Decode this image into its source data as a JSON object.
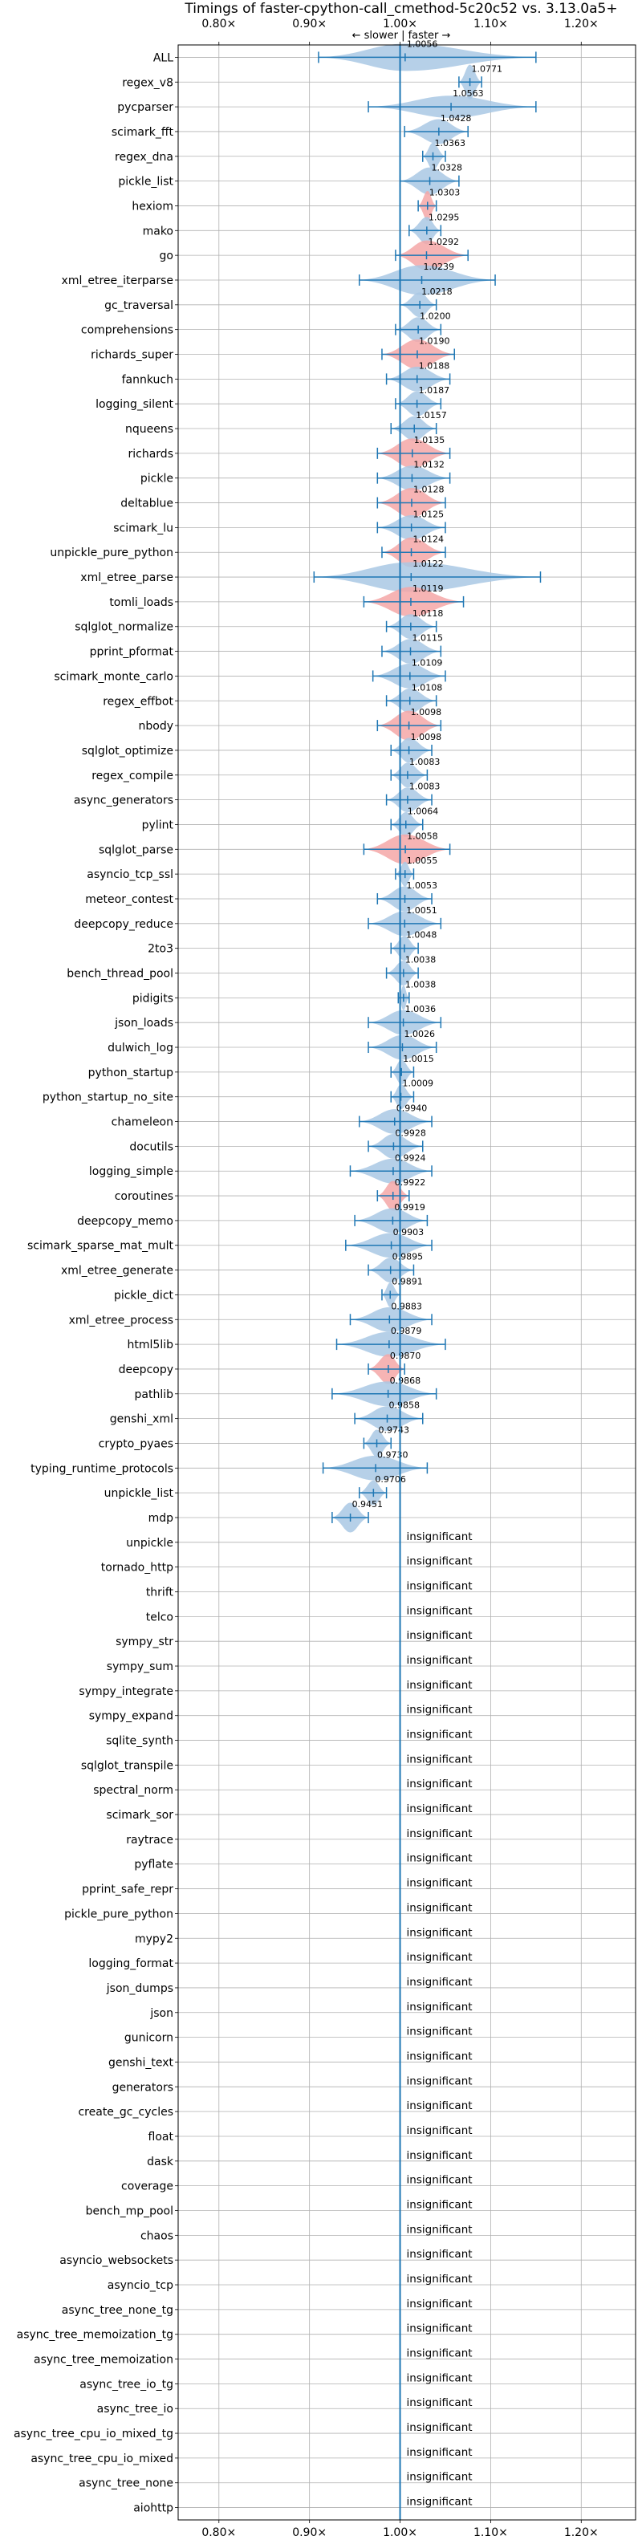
{
  "chart_data": {
    "type": "violin",
    "title": "Timings of faster-cpython-call_cmethod-5c20c52 vs. 3.13.0a5+",
    "direction_label": "← slower | faster →",
    "x_tick_labels": [
      "0.80×",
      "0.90×",
      "1.00×",
      "1.10×",
      "1.20×"
    ],
    "x_ticks": [
      0.8,
      0.9,
      1.0,
      1.1,
      1.2
    ],
    "xlim": [
      0.755,
      1.26
    ],
    "reference_line": 1.0,
    "grid": true,
    "insignificant_label": "insignificant",
    "colors": {
      "normal": "#1f77b4",
      "fill": "#a9c8e4",
      "highlight": "#f4a7a7",
      "grid": "#b0b0b0"
    },
    "benchmarks": [
      {
        "name": "ALL",
        "value": 1.0056,
        "label": "1.0056",
        "lo": 0.91,
        "hi": 1.15,
        "width": 0.55,
        "highlight": false
      },
      {
        "name": "regex_v8",
        "value": 1.0771,
        "label": "1.0771",
        "lo": 1.065,
        "hi": 1.09,
        "width": 0.7,
        "highlight": false
      },
      {
        "name": "pycparser",
        "value": 1.0563,
        "label": "1.0563",
        "lo": 0.965,
        "hi": 1.15,
        "width": 0.45,
        "highlight": false
      },
      {
        "name": "scimark_fft",
        "value": 1.0428,
        "label": "1.0428",
        "lo": 1.005,
        "hi": 1.075,
        "width": 0.5,
        "highlight": false
      },
      {
        "name": "regex_dna",
        "value": 1.0363,
        "label": "1.0363",
        "lo": 1.025,
        "hi": 1.05,
        "width": 0.55,
        "highlight": false
      },
      {
        "name": "pickle_list",
        "value": 1.0328,
        "label": "1.0328",
        "lo": 1.0,
        "hi": 1.065,
        "width": 0.55,
        "highlight": false
      },
      {
        "name": "hexiom",
        "value": 1.0303,
        "label": "1.0303",
        "lo": 1.02,
        "hi": 1.04,
        "width": 0.6,
        "highlight": true
      },
      {
        "name": "mako",
        "value": 1.0295,
        "label": "1.0295",
        "lo": 1.01,
        "hi": 1.045,
        "width": 0.55,
        "highlight": false
      },
      {
        "name": "go",
        "value": 1.0292,
        "label": "1.0292",
        "lo": 0.995,
        "hi": 1.075,
        "width": 0.6,
        "highlight": true
      },
      {
        "name": "xml_etree_iterparse",
        "value": 1.0239,
        "label": "1.0239",
        "lo": 0.955,
        "hi": 1.105,
        "width": 0.6,
        "highlight": false
      },
      {
        "name": "gc_traversal",
        "value": 1.0218,
        "label": "1.0218",
        "lo": 1.0,
        "hi": 1.04,
        "width": 0.5,
        "highlight": false
      },
      {
        "name": "comprehensions",
        "value": 1.02,
        "label": "1.0200",
        "lo": 0.995,
        "hi": 1.045,
        "width": 0.5,
        "highlight": false
      },
      {
        "name": "richards_super",
        "value": 1.019,
        "label": "1.0190",
        "lo": 0.98,
        "hi": 1.06,
        "width": 0.6,
        "highlight": true
      },
      {
        "name": "fannkuch",
        "value": 1.0188,
        "label": "1.0188",
        "lo": 0.985,
        "hi": 1.055,
        "width": 0.5,
        "highlight": false
      },
      {
        "name": "logging_silent",
        "value": 1.0187,
        "label": "1.0187",
        "lo": 0.995,
        "hi": 1.045,
        "width": 0.5,
        "highlight": false
      },
      {
        "name": "nqueens",
        "value": 1.0157,
        "label": "1.0157",
        "lo": 0.99,
        "hi": 1.04,
        "width": 0.5,
        "highlight": false
      },
      {
        "name": "richards",
        "value": 1.0135,
        "label": "1.0135",
        "lo": 0.975,
        "hi": 1.055,
        "width": 0.6,
        "highlight": true
      },
      {
        "name": "pickle",
        "value": 1.0132,
        "label": "1.0132",
        "lo": 0.975,
        "hi": 1.055,
        "width": 0.5,
        "highlight": false
      },
      {
        "name": "deltablue",
        "value": 1.0128,
        "label": "1.0128",
        "lo": 0.975,
        "hi": 1.05,
        "width": 0.6,
        "highlight": true
      },
      {
        "name": "scimark_lu",
        "value": 1.0125,
        "label": "1.0125",
        "lo": 0.975,
        "hi": 1.05,
        "width": 0.5,
        "highlight": false
      },
      {
        "name": "unpickle_pure_python",
        "value": 1.0124,
        "label": "1.0124",
        "lo": 0.98,
        "hi": 1.05,
        "width": 0.6,
        "highlight": true
      },
      {
        "name": "xml_etree_parse",
        "value": 1.0122,
        "label": "1.0122",
        "lo": 0.905,
        "hi": 1.155,
        "width": 0.6,
        "highlight": false
      },
      {
        "name": "tomli_loads",
        "value": 1.0119,
        "label": "1.0119",
        "lo": 0.96,
        "hi": 1.07,
        "width": 0.6,
        "highlight": true
      },
      {
        "name": "sqlglot_normalize",
        "value": 1.0118,
        "label": "1.0118",
        "lo": 0.985,
        "hi": 1.04,
        "width": 0.5,
        "highlight": false
      },
      {
        "name": "pprint_pformat",
        "value": 1.0115,
        "label": "1.0115",
        "lo": 0.98,
        "hi": 1.045,
        "width": 0.5,
        "highlight": false
      },
      {
        "name": "scimark_monte_carlo",
        "value": 1.0109,
        "label": "1.0109",
        "lo": 0.97,
        "hi": 1.05,
        "width": 0.5,
        "highlight": false
      },
      {
        "name": "regex_effbot",
        "value": 1.0108,
        "label": "1.0108",
        "lo": 0.985,
        "hi": 1.04,
        "width": 0.5,
        "highlight": false
      },
      {
        "name": "nbody",
        "value": 1.0098,
        "label": "1.0098",
        "lo": 0.975,
        "hi": 1.045,
        "width": 0.6,
        "highlight": true
      },
      {
        "name": "sqlglot_optimize",
        "value": 1.0098,
        "label": "1.0098",
        "lo": 0.99,
        "hi": 1.035,
        "width": 0.5,
        "highlight": false
      },
      {
        "name": "regex_compile",
        "value": 1.0083,
        "label": "1.0083",
        "lo": 0.99,
        "hi": 1.03,
        "width": 0.5,
        "highlight": false
      },
      {
        "name": "async_generators",
        "value": 1.0083,
        "label": "1.0083",
        "lo": 0.985,
        "hi": 1.035,
        "width": 0.5,
        "highlight": false
      },
      {
        "name": "pylint",
        "value": 1.0064,
        "label": "1.0064",
        "lo": 0.99,
        "hi": 1.025,
        "width": 0.5,
        "highlight": false
      },
      {
        "name": "sqlglot_parse",
        "value": 1.0058,
        "label": "1.0058",
        "lo": 0.96,
        "hi": 1.055,
        "width": 0.6,
        "highlight": true
      },
      {
        "name": "asyncio_tcp_ssl",
        "value": 1.0055,
        "label": "1.0055",
        "lo": 0.995,
        "hi": 1.015,
        "width": 0.5,
        "highlight": false
      },
      {
        "name": "meteor_contest",
        "value": 1.0053,
        "label": "1.0053",
        "lo": 0.975,
        "hi": 1.035,
        "width": 0.5,
        "highlight": false
      },
      {
        "name": "deepcopy_reduce",
        "value": 1.0051,
        "label": "1.0051",
        "lo": 0.965,
        "hi": 1.045,
        "width": 0.5,
        "highlight": false
      },
      {
        "name": "2to3",
        "value": 1.0048,
        "label": "1.0048",
        "lo": 0.99,
        "hi": 1.02,
        "width": 0.5,
        "highlight": false
      },
      {
        "name": "bench_thread_pool",
        "value": 1.0038,
        "label": "1.0038",
        "lo": 0.985,
        "hi": 1.02,
        "width": 0.5,
        "highlight": false
      },
      {
        "name": "pidigits",
        "value": 1.0038,
        "label": "1.0038",
        "lo": 0.998,
        "hi": 1.01,
        "width": 0.5,
        "highlight": false
      },
      {
        "name": "json_loads",
        "value": 1.0036,
        "label": "1.0036",
        "lo": 0.965,
        "hi": 1.045,
        "width": 0.5,
        "highlight": false
      },
      {
        "name": "dulwich_log",
        "value": 1.0026,
        "label": "1.0026",
        "lo": 0.965,
        "hi": 1.04,
        "width": 0.5,
        "highlight": false
      },
      {
        "name": "python_startup",
        "value": 1.0015,
        "label": "1.0015",
        "lo": 0.99,
        "hi": 1.015,
        "width": 0.5,
        "highlight": false
      },
      {
        "name": "python_startup_no_site",
        "value": 1.0009,
        "label": "1.0009",
        "lo": 0.99,
        "hi": 1.015,
        "width": 0.5,
        "highlight": false
      },
      {
        "name": "chameleon",
        "value": 0.994,
        "label": "0.9940",
        "lo": 0.955,
        "hi": 1.035,
        "width": 0.5,
        "highlight": false
      },
      {
        "name": "docutils",
        "value": 0.9928,
        "label": "0.9928",
        "lo": 0.965,
        "hi": 1.025,
        "width": 0.5,
        "highlight": false
      },
      {
        "name": "logging_simple",
        "value": 0.9924,
        "label": "0.9924",
        "lo": 0.945,
        "hi": 1.035,
        "width": 0.5,
        "highlight": false
      },
      {
        "name": "coroutines",
        "value": 0.9922,
        "label": "0.9922",
        "lo": 0.975,
        "hi": 1.01,
        "width": 0.6,
        "highlight": true
      },
      {
        "name": "deepcopy_memo",
        "value": 0.9919,
        "label": "0.9919",
        "lo": 0.95,
        "hi": 1.03,
        "width": 0.5,
        "highlight": false
      },
      {
        "name": "scimark_sparse_mat_mult",
        "value": 0.9903,
        "label": "0.9903",
        "lo": 0.94,
        "hi": 1.035,
        "width": 0.5,
        "highlight": false
      },
      {
        "name": "xml_etree_generate",
        "value": 0.9895,
        "label": "0.9895",
        "lo": 0.965,
        "hi": 1.015,
        "width": 0.5,
        "highlight": false
      },
      {
        "name": "pickle_dict",
        "value": 0.9891,
        "label": "0.9891",
        "lo": 0.98,
        "hi": 1.0,
        "width": 0.5,
        "highlight": false
      },
      {
        "name": "xml_etree_process",
        "value": 0.9883,
        "label": "0.9883",
        "lo": 0.945,
        "hi": 1.035,
        "width": 0.5,
        "highlight": false
      },
      {
        "name": "html5lib",
        "value": 0.9879,
        "label": "0.9879",
        "lo": 0.93,
        "hi": 1.05,
        "width": 0.5,
        "highlight": false
      },
      {
        "name": "deepcopy",
        "value": 0.987,
        "label": "0.9870",
        "lo": 0.965,
        "hi": 1.005,
        "width": 0.6,
        "highlight": true
      },
      {
        "name": "pathlib",
        "value": 0.9868,
        "label": "0.9868",
        "lo": 0.925,
        "hi": 1.04,
        "width": 0.5,
        "highlight": false
      },
      {
        "name": "genshi_xml",
        "value": 0.9858,
        "label": "0.9858",
        "lo": 0.95,
        "hi": 1.025,
        "width": 0.5,
        "highlight": false
      },
      {
        "name": "crypto_pyaes",
        "value": 0.9743,
        "label": "0.9743",
        "lo": 0.96,
        "hi": 0.99,
        "width": 0.55,
        "highlight": false
      },
      {
        "name": "typing_runtime_protocols",
        "value": 0.973,
        "label": "0.9730",
        "lo": 0.915,
        "hi": 1.03,
        "width": 0.5,
        "highlight": false
      },
      {
        "name": "unpickle_list",
        "value": 0.9706,
        "label": "0.9706",
        "lo": 0.955,
        "hi": 0.985,
        "width": 0.5,
        "highlight": false
      },
      {
        "name": "mdp",
        "value": 0.9451,
        "label": "0.9451",
        "lo": 0.925,
        "hi": 0.965,
        "width": 0.6,
        "highlight": false
      }
    ],
    "insignificant": [
      "unpickle",
      "tornado_http",
      "thrift",
      "telco",
      "sympy_str",
      "sympy_sum",
      "sympy_integrate",
      "sympy_expand",
      "sqlite_synth",
      "sqlglot_transpile",
      "spectral_norm",
      "scimark_sor",
      "raytrace",
      "pyflate",
      "pprint_safe_repr",
      "pickle_pure_python",
      "mypy2",
      "logging_format",
      "json_dumps",
      "json",
      "gunicorn",
      "genshi_text",
      "generators",
      "create_gc_cycles",
      "float",
      "dask",
      "coverage",
      "bench_mp_pool",
      "chaos",
      "asyncio_websockets",
      "asyncio_tcp",
      "async_tree_none_tg",
      "async_tree_memoization_tg",
      "async_tree_memoization",
      "async_tree_io_tg",
      "async_tree_io",
      "async_tree_cpu_io_mixed_tg",
      "async_tree_cpu_io_mixed",
      "async_tree_none",
      "aiohttp"
    ]
  }
}
